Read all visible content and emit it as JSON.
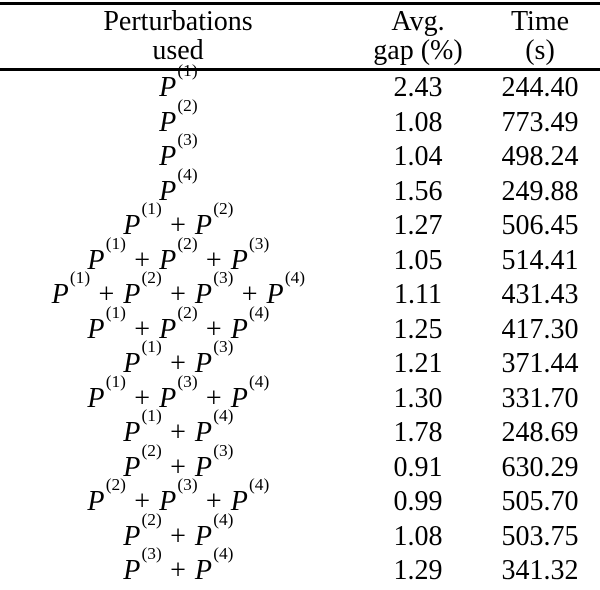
{
  "table": {
    "columns": [
      {
        "line1": "Perturbations",
        "line2": "used"
      },
      {
        "line1": "Avg.",
        "line2": "gap (%)"
      },
      {
        "line1": "Time",
        "line2": "(s)"
      }
    ],
    "math": {
      "symbol": "P",
      "plus": "+"
    },
    "rows": [
      {
        "terms": [
          "(1)"
        ],
        "gap": "2.43",
        "time": "244.40"
      },
      {
        "terms": [
          "(2)"
        ],
        "gap": "1.08",
        "time": "773.49"
      },
      {
        "terms": [
          "(3)"
        ],
        "gap": "1.04",
        "time": "498.24"
      },
      {
        "terms": [
          "(4)"
        ],
        "gap": "1.56",
        "time": "249.88"
      },
      {
        "terms": [
          "(1)",
          "(2)"
        ],
        "gap": "1.27",
        "time": "506.45"
      },
      {
        "terms": [
          "(1)",
          "(2)",
          "(3)"
        ],
        "gap": "1.05",
        "time": "514.41"
      },
      {
        "terms": [
          "(1)",
          "(2)",
          "(3)",
          "(4)"
        ],
        "gap": "1.11",
        "time": "431.43"
      },
      {
        "terms": [
          "(1)",
          "(2)",
          "(4)"
        ],
        "gap": "1.25",
        "time": "417.30"
      },
      {
        "terms": [
          "(1)",
          "(3)"
        ],
        "gap": "1.21",
        "time": "371.44"
      },
      {
        "terms": [
          "(1)",
          "(3)",
          "(4)"
        ],
        "gap": "1.30",
        "time": "331.70"
      },
      {
        "terms": [
          "(1)",
          "(4)"
        ],
        "gap": "1.78",
        "time": "248.69"
      },
      {
        "terms": [
          "(2)",
          "(3)"
        ],
        "gap": "0.91",
        "time": "630.29"
      },
      {
        "terms": [
          "(2)",
          "(3)",
          "(4)"
        ],
        "gap": "0.99",
        "time": "505.70"
      },
      {
        "terms": [
          "(2)",
          "(4)"
        ],
        "gap": "1.08",
        "time": "503.75"
      },
      {
        "terms": [
          "(3)",
          "(4)"
        ],
        "gap": "1.29",
        "time": "341.32"
      }
    ]
  },
  "colors": {
    "text": "#000000",
    "rule": "#000000",
    "background": "#ffffff"
  }
}
